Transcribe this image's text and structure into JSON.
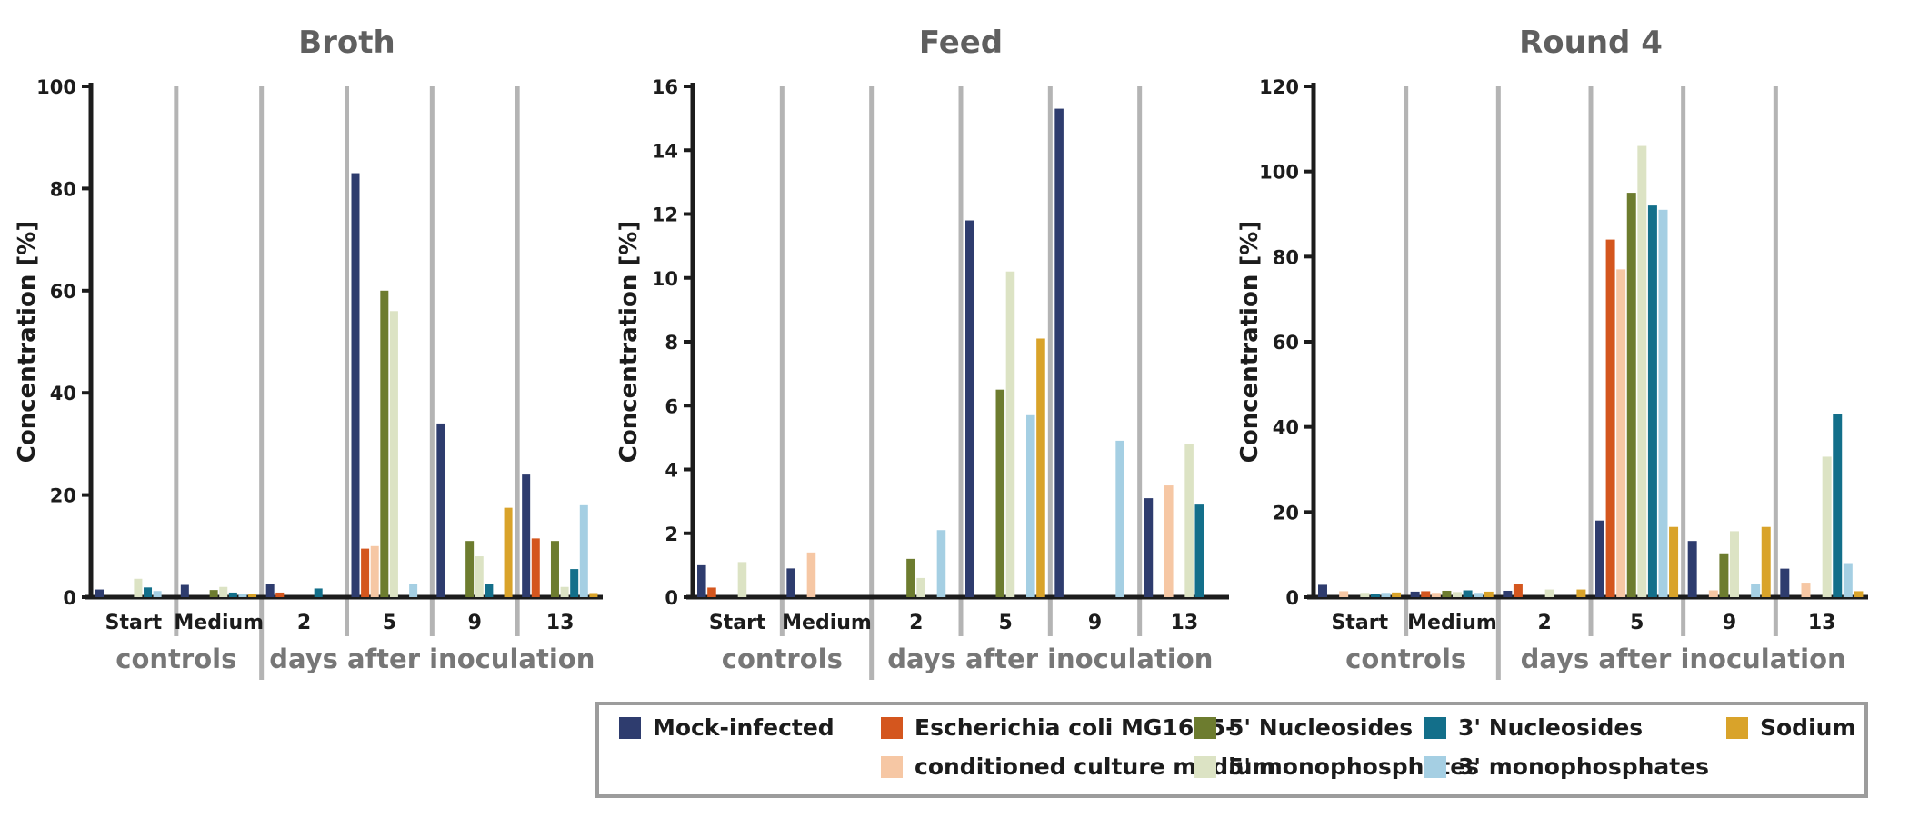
{
  "figure": {
    "background": "#ffffff",
    "text_color": "#1c1c1c",
    "title_color": "#5f5f5f",
    "group_label_color": "#777777",
    "axis_color": "#1c1c1c",
    "separator_color": "#b4b4b4",
    "legend_border_color": "#9c9c9c",
    "series": [
      {
        "name": "Mock-infected",
        "color": "#2e3c6e"
      },
      {
        "name": "Escherichia coli MG1655-",
        "color": "#d4561e"
      },
      {
        "name": "conditioned culture medium",
        "color": "#f6c7a4"
      },
      {
        "name": "5' Nucleosides",
        "color": "#6d7c2f"
      },
      {
        "name": "5' monophosphates",
        "color": "#dce3c4"
      },
      {
        "name": "3' Nucleosides",
        "color": "#136f8a"
      },
      {
        "name": "3' monophosphates",
        "color": "#a5cfe3"
      },
      {
        "name": "Sodium",
        "color": "#d9a32a"
      }
    ],
    "legend_columns": [
      [
        0
      ],
      [
        1,
        2
      ],
      [
        3,
        4
      ],
      [
        5,
        6
      ],
      [
        7
      ]
    ]
  },
  "chart_data": [
    {
      "type": "bar",
      "title": "Broth",
      "ylabel": "Concentration [%]",
      "ylim": [
        0,
        100
      ],
      "ytick_step": 20,
      "grid": "vertical-section-separators",
      "categories": [
        "Start",
        "Medium",
        "2",
        "5",
        "9",
        "13"
      ],
      "category_groups": [
        {
          "label": "controls",
          "span": [
            0,
            1
          ]
        },
        {
          "label": "days after inoculation",
          "span": [
            2,
            5
          ]
        }
      ],
      "series": [
        {
          "name": "Mock-infected",
          "values": [
            1.5,
            2.4,
            2.6,
            83.0,
            34.0,
            24.0
          ]
        },
        {
          "name": "Escherichia coli MG1655-",
          "values": [
            0,
            0,
            0.9,
            9.5,
            0,
            11.5
          ]
        },
        {
          "name": "conditioned culture medium",
          "values": [
            0,
            0,
            0,
            10.0,
            0,
            0
          ]
        },
        {
          "name": "5' Nucleosides",
          "values": [
            0,
            1.4,
            0,
            60.0,
            11.0,
            11.0
          ]
        },
        {
          "name": "5' monophosphates",
          "values": [
            3.6,
            2.0,
            0,
            56.0,
            8.0,
            2.0
          ]
        },
        {
          "name": "3' Nucleosides",
          "values": [
            1.9,
            0.9,
            1.7,
            0,
            2.5,
            5.5
          ]
        },
        {
          "name": "3' monophosphates",
          "values": [
            1.2,
            0.7,
            0,
            2.5,
            0,
            18.0
          ]
        },
        {
          "name": "Sodium",
          "values": [
            0,
            0.7,
            0,
            0,
            17.5,
            0.8
          ]
        }
      ]
    },
    {
      "type": "bar",
      "title": "Feed",
      "ylabel": "Concentration [%]",
      "ylim": [
        0,
        16
      ],
      "ytick_step": 2,
      "grid": "vertical-section-separators",
      "categories": [
        "Start",
        "Medium",
        "2",
        "5",
        "9",
        "13"
      ],
      "category_groups": [
        {
          "label": "controls",
          "span": [
            0,
            1
          ]
        },
        {
          "label": "days after inoculation",
          "span": [
            2,
            5
          ]
        }
      ],
      "series": [
        {
          "name": "Mock-infected",
          "values": [
            1.0,
            0.9,
            0,
            11.8,
            15.3,
            3.1
          ]
        },
        {
          "name": "Escherichia coli MG1655-",
          "values": [
            0.3,
            0,
            0,
            0,
            0,
            0
          ]
        },
        {
          "name": "conditioned culture medium",
          "values": [
            0,
            1.4,
            0,
            0,
            0,
            3.5
          ]
        },
        {
          "name": "5' Nucleosides",
          "values": [
            0,
            0,
            1.2,
            6.5,
            0,
            0
          ]
        },
        {
          "name": "5' monophosphates",
          "values": [
            1.1,
            0,
            0.6,
            10.2,
            0,
            4.8
          ]
        },
        {
          "name": "3' Nucleosides",
          "values": [
            0,
            0,
            0,
            0,
            0,
            2.9
          ]
        },
        {
          "name": "3' monophosphates",
          "values": [
            0,
            0,
            2.1,
            5.7,
            4.9,
            0
          ]
        },
        {
          "name": "Sodium",
          "values": [
            0,
            0,
            0,
            8.1,
            0,
            0
          ]
        }
      ]
    },
    {
      "type": "bar",
      "title": "Round 4",
      "ylabel": "Concentration [%]",
      "ylim": [
        0,
        120
      ],
      "ytick_step": 20,
      "grid": "vertical-section-separators",
      "categories": [
        "Start",
        "Medium",
        "2",
        "5",
        "9",
        "13"
      ],
      "category_groups": [
        {
          "label": "controls",
          "span": [
            0,
            1
          ]
        },
        {
          "label": "days after inoculation",
          "span": [
            2,
            5
          ]
        }
      ],
      "series": [
        {
          "name": "Mock-infected",
          "values": [
            2.9,
            1.3,
            1.5,
            18.0,
            13.2,
            6.7
          ]
        },
        {
          "name": "Escherichia coli MG1655-",
          "values": [
            0,
            1.4,
            3.1,
            84.0,
            0,
            0
          ]
        },
        {
          "name": "conditioned culture medium",
          "values": [
            1.4,
            1.0,
            0,
            77.0,
            1.6,
            3.4
          ]
        },
        {
          "name": "5' Nucleosides",
          "values": [
            0,
            1.5,
            0,
            95.0,
            10.3,
            0
          ]
        },
        {
          "name": "5' monophosphates",
          "values": [
            1.0,
            1.2,
            1.8,
            106.0,
            15.5,
            33.0
          ]
        },
        {
          "name": "3' Nucleosides",
          "values": [
            0.8,
            1.6,
            0,
            92.0,
            0,
            43.0
          ]
        },
        {
          "name": "3' monophosphates",
          "values": [
            1.0,
            1.0,
            0,
            91.0,
            3.1,
            8.0
          ]
        },
        {
          "name": "Sodium",
          "values": [
            1.1,
            1.3,
            1.8,
            16.5,
            16.5,
            1.4
          ]
        }
      ]
    }
  ]
}
